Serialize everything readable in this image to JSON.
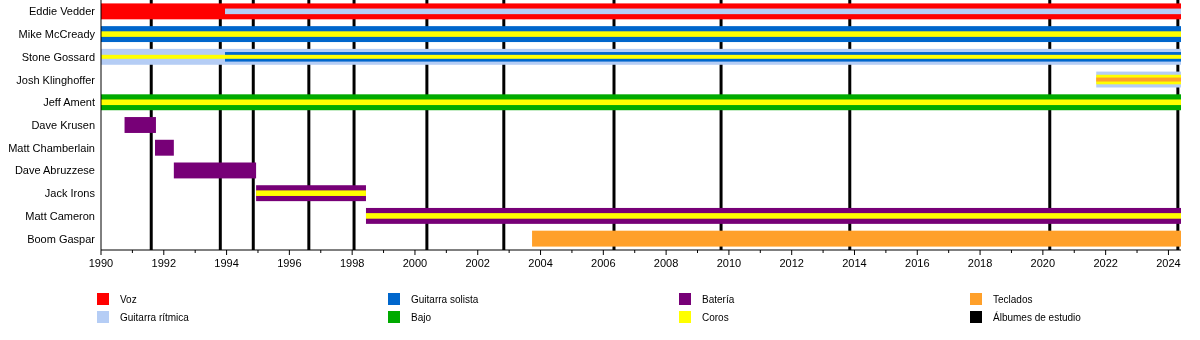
{
  "chart_data": {
    "type": "bar",
    "orientation": "horizontal",
    "categories": [
      "Eddie Vedder",
      "Mike McCready",
      "Stone Gossard",
      "Josh Klinghoffer",
      "Jeff Ament",
      "Dave Krusen",
      "Matt Chamberlain",
      "Dave Abruzzese",
      "Jack Irons",
      "Matt Cameron",
      "Boom Gaspar"
    ],
    "series": [
      {
        "name": "Voz",
        "color": "#ff0000",
        "base": [
          1990,
          null,
          null,
          null,
          null,
          null,
          null,
          null,
          null,
          null,
          null
        ],
        "values": [
          34.4,
          null,
          null,
          null,
          null,
          null,
          null,
          null,
          null,
          null,
          null
        ]
      },
      {
        "name": "Guitarra rítmica",
        "color": "#b5cdf5",
        "base": [
          1993.95,
          null,
          1990,
          2021.7,
          null,
          null,
          null,
          null,
          null,
          null,
          null
        ],
        "values": [
          30.45,
          null,
          34.4,
          2.7,
          null,
          null,
          null,
          null,
          null,
          null,
          null
        ]
      },
      {
        "name": "Guitarra solista",
        "color": "#0066cc",
        "base": [
          null,
          1990,
          1993.95,
          null,
          null,
          null,
          null,
          null,
          null,
          null,
          null
        ],
        "values": [
          null,
          34.4,
          30.45,
          null,
          null,
          null,
          null,
          null,
          null,
          null,
          null
        ]
      },
      {
        "name": "Bajo",
        "color": "#00aa00",
        "base": [
          null,
          null,
          null,
          null,
          1990,
          null,
          null,
          null,
          null,
          null,
          null
        ],
        "values": [
          null,
          null,
          null,
          null,
          34.4,
          null,
          null,
          null,
          null,
          null,
          null
        ]
      },
      {
        "name": "Batería",
        "color": "#770077",
        "base": [
          null,
          null,
          null,
          null,
          null,
          1990.75,
          1991.72,
          1992.32,
          1994.94,
          1998.44,
          null
        ],
        "values": [
          null,
          null,
          null,
          null,
          null,
          1.0,
          0.6,
          2.62,
          3.5,
          25.96,
          null
        ]
      },
      {
        "name": "Coros",
        "color": "#ffff00",
        "base": [
          null,
          1990,
          1990,
          2021.7,
          1990,
          null,
          null,
          null,
          1994.94,
          1998.44,
          null
        ],
        "values": [
          null,
          34.4,
          34.4,
          2.7,
          34.4,
          null,
          null,
          null,
          3.5,
          25.96,
          null
        ]
      },
      {
        "name": "Teclados",
        "color": "#ffa02a",
        "base": [
          null,
          null,
          null,
          2021.7,
          null,
          null,
          null,
          null,
          null,
          null,
          2003.73
        ],
        "values": [
          null,
          null,
          null,
          2.7,
          null,
          null,
          null,
          null,
          null,
          null,
          20.67
        ]
      }
    ],
    "xlim": [
      1990,
      2024.4
    ],
    "xticks": [
      1990,
      {
        "value": 1991,
        "label": null
      },
      1992,
      {
        "value": 1993,
        "label": null
      },
      1994,
      {
        "value": 1995,
        "label": null
      },
      1996,
      {
        "value": 1997,
        "label": null
      },
      1998,
      {
        "value": 1999,
        "label": null
      },
      2000,
      {
        "value": 2001,
        "label": null
      },
      2002,
      {
        "value": 2003,
        "label": null
      },
      2004,
      {
        "value": 2005,
        "label": null
      },
      2006,
      {
        "value": 2007,
        "label": null
      },
      2008,
      {
        "value": 2009,
        "label": null
      },
      2010,
      {
        "value": 2011,
        "label": null
      },
      2012,
      {
        "value": 2013,
        "label": null
      },
      2014,
      {
        "value": 2015,
        "label": null
      },
      2016,
      {
        "value": 2017,
        "label": null
      },
      2018,
      {
        "value": 2019,
        "label": null
      },
      2020,
      {
        "value": 2021,
        "label": null
      },
      2022,
      {
        "value": 2023,
        "label": null
      },
      2024
    ],
    "ref_lines": [
      {
        "axis": "x",
        "value": 1991.6,
        "label": "Álbumes de estudio",
        "color": "#000000"
      },
      {
        "axis": "x",
        "value": 1993.8,
        "color": "#000000"
      },
      {
        "axis": "x",
        "value": 1994.85,
        "color": "#000000"
      },
      {
        "axis": "x",
        "value": 1996.62,
        "color": "#000000"
      },
      {
        "axis": "x",
        "value": 1998.06,
        "color": "#000000"
      },
      {
        "axis": "x",
        "value": 2000.38,
        "color": "#000000"
      },
      {
        "axis": "x",
        "value": 2002.83,
        "color": "#000000"
      },
      {
        "axis": "x",
        "value": 2006.34,
        "color": "#000000"
      },
      {
        "axis": "x",
        "value": 2009.75,
        "color": "#000000"
      },
      {
        "axis": "x",
        "value": 2013.85,
        "color": "#000000"
      },
      {
        "axis": "x",
        "value": 2020.22,
        "color": "#000000"
      },
      {
        "axis": "x",
        "value": 2024.3,
        "color": "#000000"
      }
    ],
    "legend": "bottom",
    "grid": false
  }
}
